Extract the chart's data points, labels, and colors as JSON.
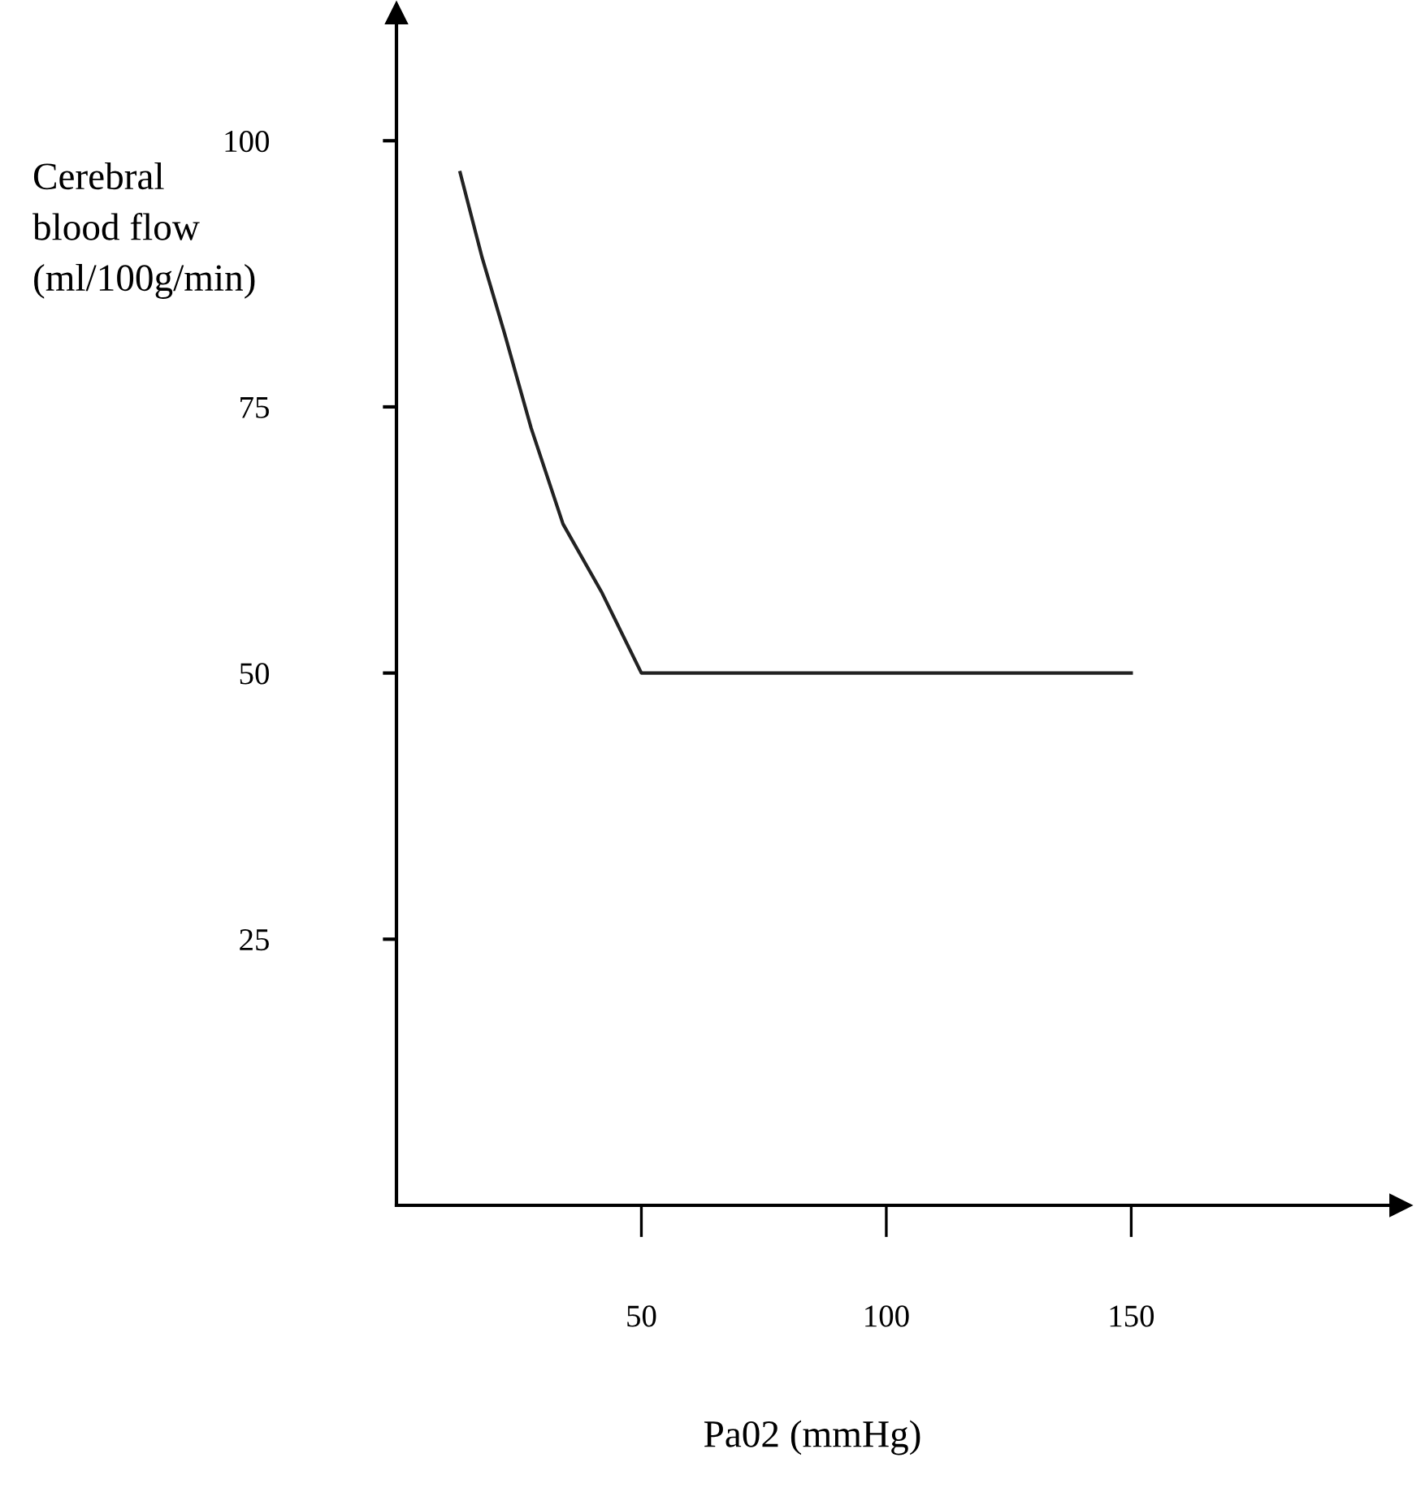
{
  "chart_data": {
    "type": "line",
    "xlabel": "Pa02 (mmHg)",
    "ylabel": "Cerebral\nblood flow\n(ml/100g/min)",
    "x": [
      13,
      17.5,
      22,
      27.5,
      34,
      42,
      50,
      150
    ],
    "series": [
      {
        "color": "#222222",
        "values": [
          97,
          89,
          82,
          73,
          64,
          57.5,
          50,
          50
        ]
      }
    ],
    "xlim": [
      0,
      205
    ],
    "ylim": [
      0,
      112
    ],
    "xticks": [
      50,
      100,
      150
    ],
    "yticks": [
      25,
      50,
      75,
      100
    ],
    "grid": false,
    "legend": false,
    "marker": "none",
    "line_style": "solid"
  }
}
